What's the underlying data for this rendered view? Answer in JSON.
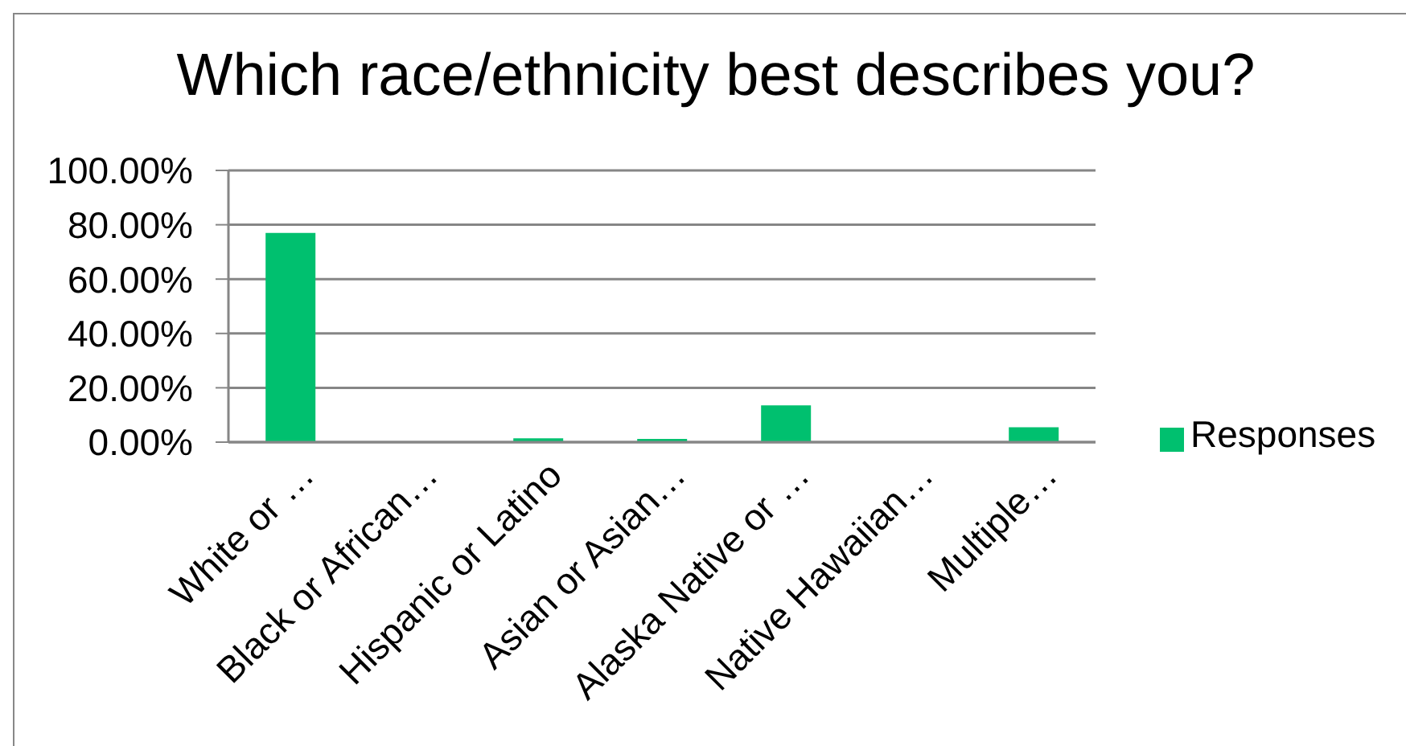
{
  "chart_data": {
    "type": "bar",
    "title": "Which race/ethnicity best describes you?",
    "categories": [
      "White or …",
      "Black or African…",
      "Hispanic or Latino",
      "Asian or Asian…",
      "Alaska Native or …",
      "Native Hawaiian…",
      "Multiple…"
    ],
    "series": [
      {
        "name": "Responses",
        "color": "#00c06f",
        "values": [
          77,
          0,
          1.4,
          1.2,
          13.5,
          0,
          5.5
        ]
      }
    ],
    "ylim": [
      0,
      100
    ],
    "yticks": [
      {
        "value": 0,
        "label": "0.00%"
      },
      {
        "value": 20,
        "label": "20.00%"
      },
      {
        "value": 40,
        "label": "40.00%"
      },
      {
        "value": 60,
        "label": "60.00%"
      },
      {
        "value": 80,
        "label": "80.00%"
      },
      {
        "value": 100,
        "label": "100.00%"
      }
    ],
    "grid": "y",
    "legend": "right"
  }
}
